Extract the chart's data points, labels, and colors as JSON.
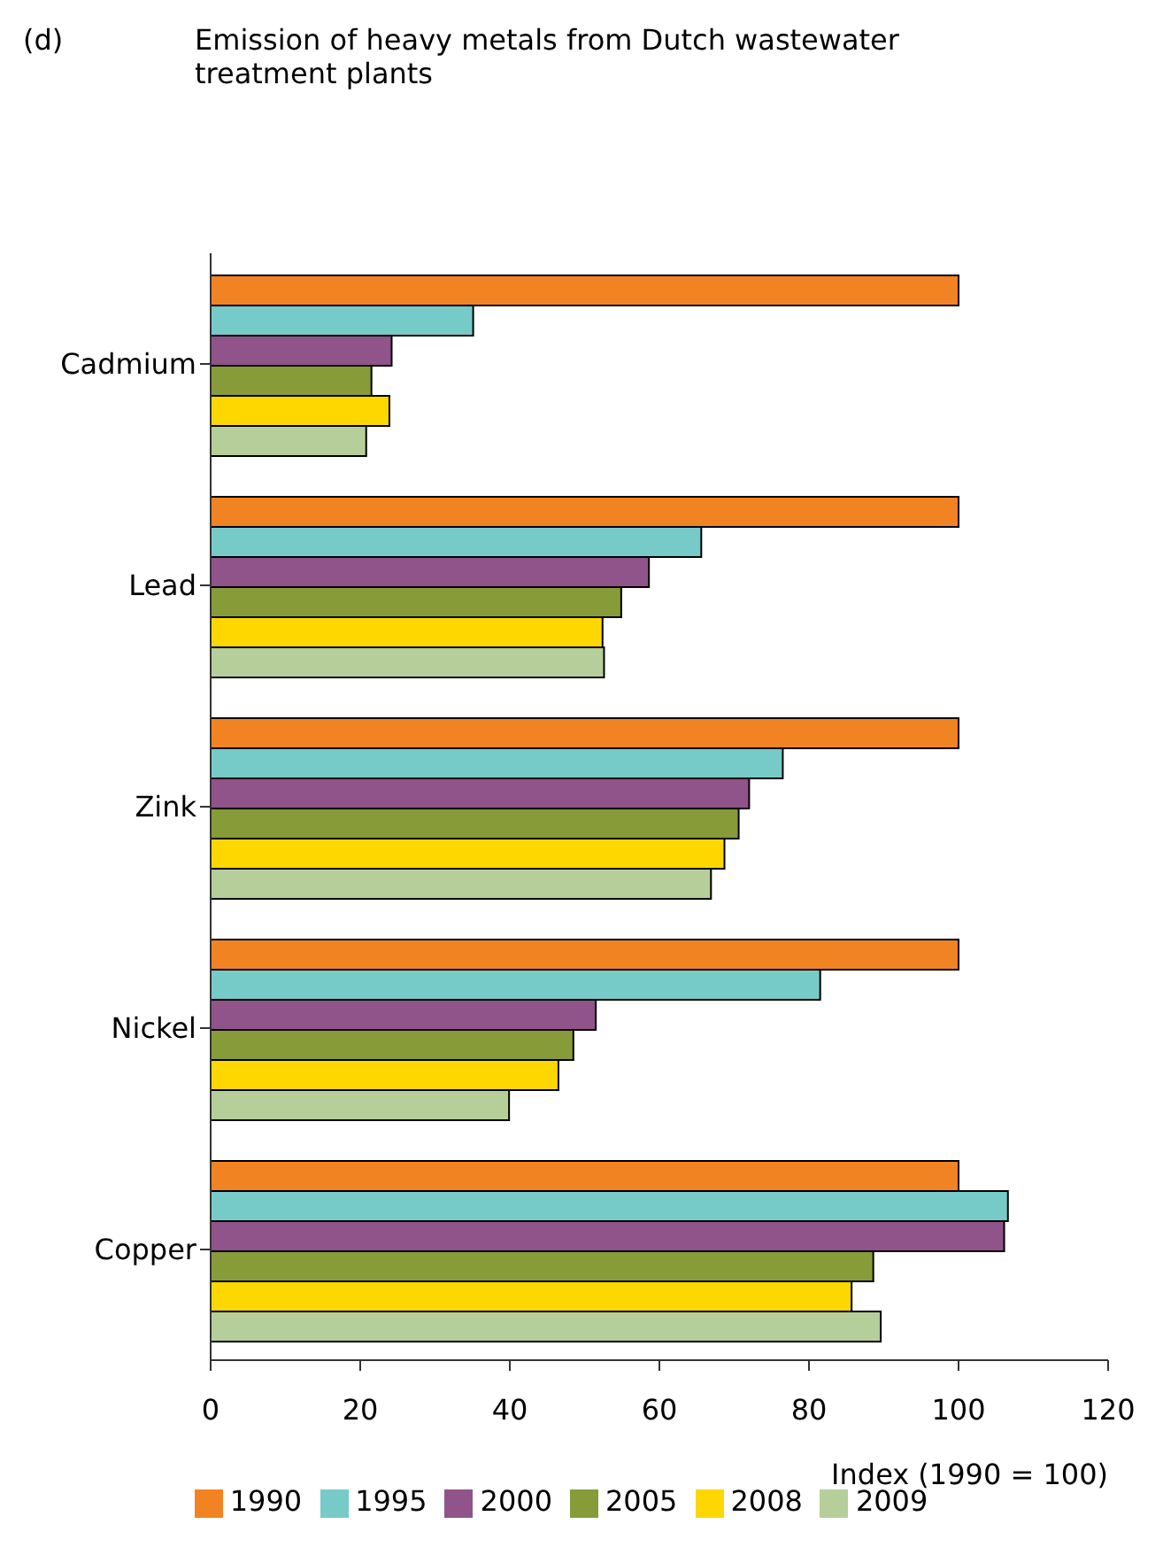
{
  "chart_data": {
    "type": "bar",
    "orientation": "horizontal",
    "title": "Emission of heavy metals from Dutch wastewater treatment plants",
    "annotations": [
      "(d)"
    ],
    "xlabel": "Index (1990 = 100)",
    "categories": [
      "Cadmium",
      "Lead",
      "Zink",
      "Nickel",
      "Copper"
    ],
    "xlim": [
      0,
      120
    ],
    "xticks": [
      0,
      20,
      40,
      60,
      80,
      100,
      120
    ],
    "grid": false,
    "legend": "bottom",
    "series": [
      {
        "name": "1990",
        "color": "#f28322",
        "values": [
          100,
          100,
          100,
          100,
          100
        ]
      },
      {
        "name": "1995",
        "color": "#76cbc8",
        "values": [
          35.1,
          65.6,
          76.5,
          81.5,
          106.6
        ]
      },
      {
        "name": "2000",
        "color": "#90538a",
        "values": [
          24.2,
          58.6,
          72.0,
          51.5,
          106.1
        ]
      },
      {
        "name": "2005",
        "color": "#879b38",
        "values": [
          21.5,
          54.9,
          70.6,
          48.5,
          88.6
        ]
      },
      {
        "name": "2008",
        "color": "#ffd700",
        "values": [
          23.9,
          52.4,
          68.7,
          46.5,
          85.7
        ]
      },
      {
        "name": "2009",
        "color": "#b6ce9a",
        "values": [
          20.8,
          52.6,
          66.9,
          39.9,
          89.6
        ]
      }
    ]
  }
}
